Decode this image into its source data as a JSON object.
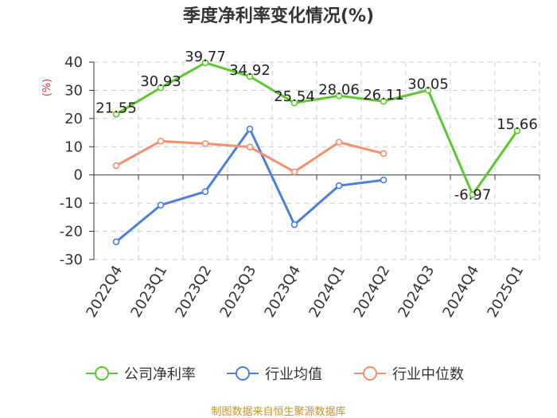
{
  "chart_data": {
    "type": "line",
    "title": "季度净利率变化情况(%)",
    "ylabel": "(%)",
    "xlabel": "",
    "ylim": [
      -30,
      40
    ],
    "yticks": [
      40,
      30,
      20,
      10,
      0,
      -10,
      -20,
      -30
    ],
    "grid": true,
    "legend_position": "bottom",
    "categories": [
      "2022Q4",
      "2023Q1",
      "2023Q2",
      "2023Q3",
      "2023Q4",
      "2024Q1",
      "2024Q2",
      "2024Q3",
      "2024Q4",
      "2025Q1"
    ],
    "series": [
      {
        "name": "公司净利率",
        "color": "#5cc82f",
        "values": [
          21.55,
          30.93,
          39.77,
          34.92,
          25.54,
          28.06,
          26.11,
          30.05,
          -6.97,
          15.66
        ],
        "labels": [
          "21.55",
          "30.93",
          "39.77",
          "34.92",
          "25.54",
          "28.06",
          "26.11",
          "30.05",
          "-6.97",
          "15.66"
        ]
      },
      {
        "name": "行业均值",
        "color": "#4a7fe0",
        "values": [
          -23.7,
          -10.7,
          -5.9,
          16.3,
          -17.6,
          -3.8,
          -1.8,
          null,
          null,
          null
        ]
      },
      {
        "name": "行业中位数",
        "color": "#f5906a",
        "values": [
          3.3,
          12.0,
          11.1,
          9.9,
          1.1,
          11.6,
          7.6,
          null,
          null,
          null
        ]
      }
    ]
  },
  "source": "制图数据来自恒生聚源数据库"
}
